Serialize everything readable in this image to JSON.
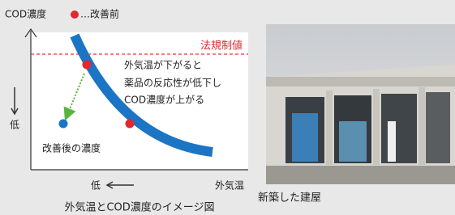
{
  "diagram": {
    "y_axis_label": "COD濃度",
    "legend_label": "…改善前",
    "regulation_label": "法規制値",
    "annotation": [
      "外気温が下がると",
      "薬品の反応性が低下し",
      "COD濃度が上がる"
    ],
    "improved_label": "改善後の濃度",
    "y_low_label": "低",
    "x_low_label": "低",
    "x_axis_label": "外気温",
    "caption": "外気温とCOD濃度のイメージ図"
  },
  "photo": {
    "caption": "新築した建屋"
  }
}
